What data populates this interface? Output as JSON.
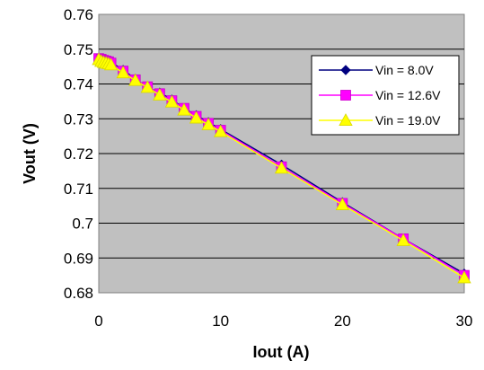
{
  "chart_data": {
    "type": "line",
    "title": "",
    "xlabel": "Iout (A)",
    "ylabel": "Vout (V)",
    "xlim": [
      0,
      30
    ],
    "ylim": [
      0.68,
      0.76
    ],
    "x_ticks": [
      "0",
      "10",
      "20",
      "30"
    ],
    "y_ticks": [
      "0.68",
      "0.69",
      "0.7",
      "0.71",
      "0.72",
      "0.73",
      "0.74",
      "0.75",
      "0.76"
    ],
    "grid": "horizontal",
    "plot_background": "#c0c0c0",
    "legend_position": "right",
    "series": [
      {
        "name": "Vin = 8.0V",
        "color": "#000080",
        "marker": "diamond",
        "x": [
          0,
          0.2,
          0.4,
          0.6,
          0.8,
          1,
          2,
          3,
          4,
          5,
          6,
          7,
          8,
          9,
          10,
          15,
          20,
          25,
          30
        ],
        "y": [
          0.7475,
          0.7473,
          0.747,
          0.7468,
          0.7466,
          0.7463,
          0.744,
          0.7415,
          0.739,
          0.7375,
          0.7355,
          0.733,
          0.731,
          0.729,
          0.727,
          0.7168,
          0.706,
          0.6955,
          0.6855
        ]
      },
      {
        "name": "Vin = 12.6V",
        "color": "#ff00ff",
        "marker": "square",
        "x": [
          0,
          0.2,
          0.4,
          0.6,
          0.8,
          1,
          2,
          3,
          4,
          5,
          6,
          7,
          8,
          9,
          10,
          15,
          20,
          25,
          30
        ],
        "y": [
          0.7473,
          0.7471,
          0.7468,
          0.7466,
          0.7464,
          0.746,
          0.7437,
          0.7412,
          0.7392,
          0.7372,
          0.7352,
          0.733,
          0.7307,
          0.7287,
          0.7267,
          0.7162,
          0.7057,
          0.6955,
          0.685
        ]
      },
      {
        "name": "Vin = 19.0V",
        "color": "#ffff00",
        "marker": "triangle",
        "x": [
          0,
          0.2,
          0.4,
          0.6,
          0.8,
          1,
          2,
          3,
          4,
          5,
          6,
          7,
          8,
          9,
          10,
          15,
          20,
          25,
          30
        ],
        "y": [
          0.747,
          0.7465,
          0.7462,
          0.746,
          0.7458,
          0.7455,
          0.7432,
          0.741,
          0.739,
          0.7368,
          0.7348,
          0.7325,
          0.7302,
          0.7283,
          0.7263,
          0.7158,
          0.7053,
          0.695,
          0.6843
        ]
      }
    ]
  }
}
